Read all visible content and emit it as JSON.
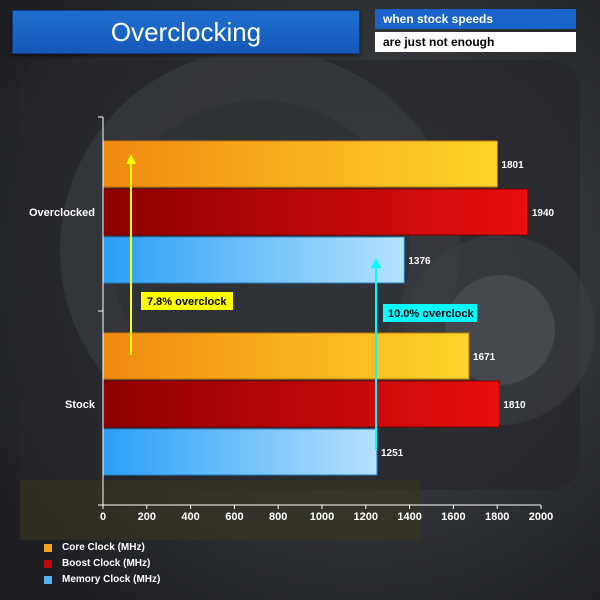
{
  "header": {
    "title": "Overclocking",
    "subtitle_line1": "when stock speeds",
    "subtitle_line2": "are just not enough"
  },
  "colors": {
    "core": "#f5a21c",
    "boost": "#c00a0a",
    "memory": "#55b4f5",
    "annotation_yellow": "#ffff00",
    "annotation_cyan": "#00ffff"
  },
  "annotations": {
    "core_overclock": "7.8% overclock",
    "memory_overclock": "10.0% overclock"
  },
  "chart_data": {
    "type": "bar",
    "orientation": "horizontal",
    "categories": [
      "Overclocked",
      "Stock"
    ],
    "series": [
      {
        "name": "Core Clock (MHz)",
        "values": [
          1801,
          1671
        ]
      },
      {
        "name": "Boost Clock (MHz)",
        "values": [
          1940,
          1810
        ]
      },
      {
        "name": "Memory Clock (MHz)",
        "values": [
          1376,
          1251
        ]
      }
    ],
    "xlim": [
      0,
      2000
    ],
    "xticks": [
      0,
      200,
      400,
      600,
      800,
      1000,
      1200,
      1400,
      1600,
      1800,
      2000
    ],
    "legend_position": "bottom-left",
    "grid": false
  }
}
